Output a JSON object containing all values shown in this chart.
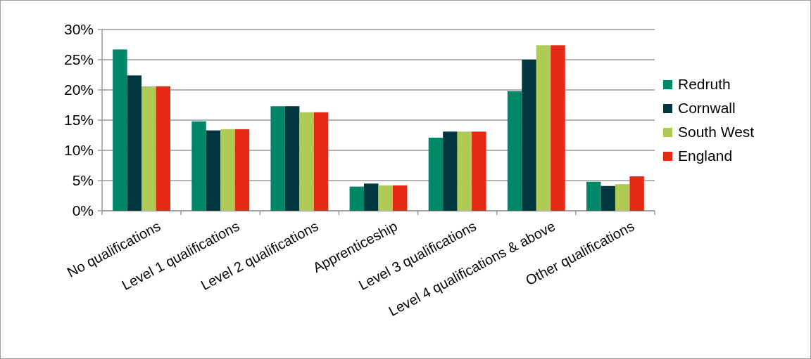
{
  "chart_data": {
    "type": "bar",
    "categories": [
      "No qualifications",
      "Level 1 qualifications",
      "Level 2 qualifications",
      "Apprenticeship",
      "Level 3 qualifications",
      "Level 4 qualifications & above",
      "Other qualifications"
    ],
    "series": [
      {
        "name": "Redruth",
        "color": "#00876a",
        "values": [
          26.7,
          14.8,
          17.3,
          4.0,
          12.1,
          19.8,
          4.8
        ]
      },
      {
        "name": "Cornwall",
        "color": "#003640",
        "values": [
          22.4,
          13.3,
          17.3,
          4.5,
          13.1,
          25.0,
          4.1
        ]
      },
      {
        "name": "South West",
        "color": "#b0cb55",
        "values": [
          20.6,
          13.5,
          16.3,
          4.2,
          13.1,
          27.4,
          4.4
        ]
      },
      {
        "name": "England",
        "color": "#e52915",
        "values": [
          20.6,
          13.5,
          16.3,
          4.2,
          13.1,
          27.4,
          5.7
        ]
      }
    ],
    "ylim": [
      0,
      30
    ],
    "yticks": [
      {
        "value": 0,
        "label": "0%"
      },
      {
        "value": 5,
        "label": "5%"
      },
      {
        "value": 10,
        "label": "10%"
      },
      {
        "value": 15,
        "label": "15%"
      },
      {
        "value": 20,
        "label": "20%"
      },
      {
        "value": 25,
        "label": "25%"
      },
      {
        "value": 30,
        "label": "30%"
      }
    ],
    "grid": "y",
    "legend": "right"
  }
}
